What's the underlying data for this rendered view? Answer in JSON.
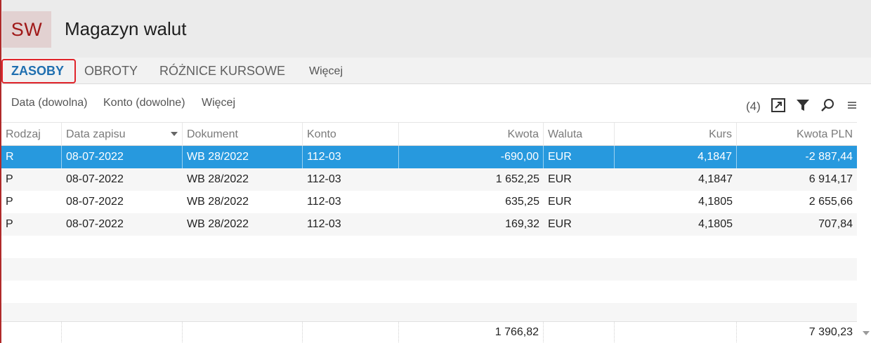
{
  "app": {
    "logo": "SW",
    "title": "Magazyn walut"
  },
  "tabs": [
    {
      "label": "ZASOBY",
      "active": true
    },
    {
      "label": "OBROTY",
      "active": false
    },
    {
      "label": "RÓŻNICE KURSOWE",
      "active": false
    },
    {
      "label": "Więcej",
      "active": false
    }
  ],
  "filters": {
    "date": "Data (dowolna)",
    "account": "Konto (dowolne)",
    "more": "Więcej",
    "count": "(4)"
  },
  "toolbar_icons": [
    "expand-icon",
    "filter-icon",
    "search-icon",
    "menu-icon"
  ],
  "table": {
    "columns": [
      "Rodzaj",
      "Data zapisu",
      "Dokument",
      "Konto",
      "Kwota",
      "Waluta",
      "Kurs",
      "Kwota PLN"
    ],
    "sorted_column": "Data zapisu",
    "rows": [
      {
        "rodzaj": "R",
        "data": "08-07-2022",
        "dokument": "WB 28/2022",
        "konto": "112-03",
        "kwota": "-690,00",
        "waluta": "EUR",
        "kurs": "4,1847",
        "kwota_pln": "-2 887,44",
        "selected": true
      },
      {
        "rodzaj": "P",
        "data": "08-07-2022",
        "dokument": "WB 28/2022",
        "konto": "112-03",
        "kwota": "1 652,25",
        "waluta": "EUR",
        "kurs": "4,1847",
        "kwota_pln": "6 914,17",
        "selected": false
      },
      {
        "rodzaj": "P",
        "data": "08-07-2022",
        "dokument": "WB 28/2022",
        "konto": "112-03",
        "kwota": "635,25",
        "waluta": "EUR",
        "kurs": "4,1805",
        "kwota_pln": "2 655,66",
        "selected": false
      },
      {
        "rodzaj": "P",
        "data": "08-07-2022",
        "dokument": "WB 28/2022",
        "konto": "112-03",
        "kwota": "169,32",
        "waluta": "EUR",
        "kurs": "4,1805",
        "kwota_pln": "707,84",
        "selected": false
      }
    ],
    "totals": {
      "kwota": "1 766,82",
      "kwota_pln": "7 390,23"
    }
  },
  "colors": {
    "selection": "#2799de",
    "active_tab": "#1f6fb0",
    "logo_text": "#a01818",
    "highlight_border": "#e0242b"
  }
}
